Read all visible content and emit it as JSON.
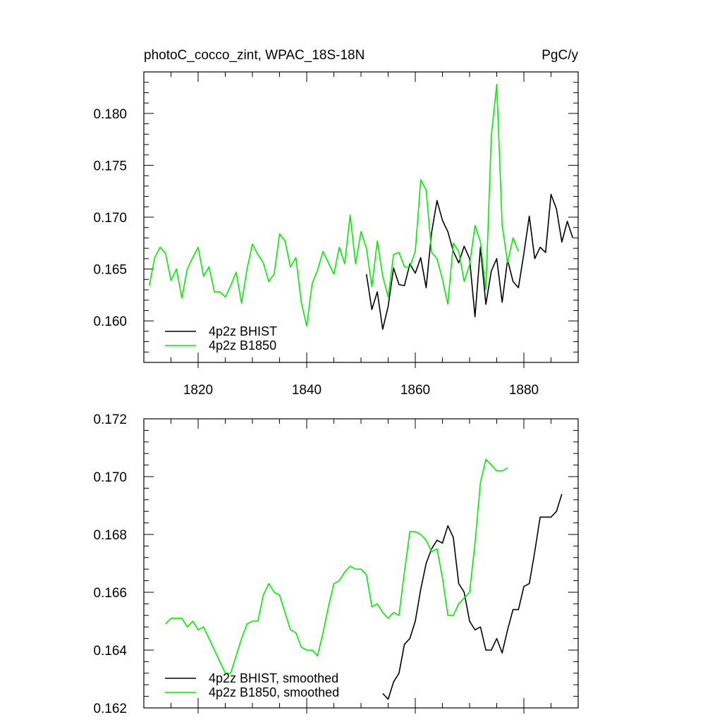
{
  "header": {
    "left_title": "photoC_cocco_zint, WPAC_18S-18N",
    "right_title": "PgC/y"
  },
  "colors": {
    "bhist": "#000000",
    "b1850": "#00ee00"
  },
  "chart_data": [
    {
      "type": "line",
      "title": "photoC_cocco_zint, WPAC_18S-18N",
      "units": "PgC/y",
      "xlim": [
        1810,
        1890
      ],
      "ylim": [
        0.156,
        0.184
      ],
      "xticks": [
        1820,
        1840,
        1860,
        1880
      ],
      "xtick_labels": [
        "1820",
        "1840",
        "1860",
        "1880"
      ],
      "yticks": [
        0.16,
        0.165,
        0.17,
        0.175,
        0.18
      ],
      "ytick_labels": [
        "0.160",
        "0.165",
        "0.170",
        "0.175",
        "0.180"
      ],
      "grid": false,
      "legend_position": "bottom-left",
      "series": [
        {
          "name": "4p2z BHIST",
          "color": "#000000",
          "x": [
            1851,
            1852,
            1853,
            1854,
            1855,
            1856,
            1857,
            1858,
            1859,
            1860,
            1861,
            1862,
            1863,
            1864,
            1865,
            1866,
            1867,
            1868,
            1869,
            1870,
            1871,
            1872,
            1873,
            1874,
            1875,
            1876,
            1877,
            1878,
            1879,
            1880,
            1881,
            1882,
            1883,
            1884,
            1885,
            1886,
            1887,
            1888,
            1889
          ],
          "y": [
            0.1645,
            0.1611,
            0.1628,
            0.1592,
            0.1614,
            0.1651,
            0.1635,
            0.1634,
            0.1655,
            0.1646,
            0.1661,
            0.1632,
            0.1685,
            0.1716,
            0.1697,
            0.1686,
            0.1667,
            0.1656,
            0.1672,
            0.166,
            0.1604,
            0.1671,
            0.1616,
            0.1648,
            0.166,
            0.1618,
            0.1659,
            0.1638,
            0.1632,
            0.1665,
            0.1701,
            0.166,
            0.1671,
            0.1666,
            0.1722,
            0.1708,
            0.1676,
            0.1696,
            0.168
          ]
        },
        {
          "name": "4p2z B1850",
          "color": "#00ee00",
          "x": [
            1811,
            1812,
            1813,
            1814,
            1815,
            1816,
            1817,
            1818,
            1819,
            1820,
            1821,
            1822,
            1823,
            1824,
            1825,
            1826,
            1827,
            1828,
            1829,
            1830,
            1831,
            1832,
            1833,
            1834,
            1835,
            1836,
            1837,
            1838,
            1839,
            1840,
            1841,
            1842,
            1843,
            1844,
            1845,
            1846,
            1847,
            1848,
            1849,
            1850,
            1851,
            1852,
            1853,
            1854,
            1855,
            1856,
            1857,
            1858,
            1859,
            1860,
            1861,
            1862,
            1863,
            1864,
            1865,
            1866,
            1867,
            1868,
            1869,
            1870,
            1871,
            1872,
            1873,
            1874,
            1875,
            1876,
            1877,
            1878,
            1879
          ],
          "y": [
            0.1634,
            0.1661,
            0.1671,
            0.1665,
            0.1639,
            0.165,
            0.1622,
            0.165,
            0.1661,
            0.1671,
            0.1643,
            0.1652,
            0.1628,
            0.1628,
            0.1623,
            0.1634,
            0.1647,
            0.1617,
            0.165,
            0.1674,
            0.1664,
            0.1656,
            0.1638,
            0.1645,
            0.1684,
            0.1677,
            0.1652,
            0.1661,
            0.1618,
            0.1595,
            0.1636,
            0.1649,
            0.1667,
            0.1656,
            0.1645,
            0.1671,
            0.1655,
            0.1702,
            0.1655,
            0.1686,
            0.167,
            0.1633,
            0.1677,
            0.1643,
            0.1623,
            0.1664,
            0.1666,
            0.1652,
            0.1652,
            0.1667,
            0.1736,
            0.1726,
            0.1666,
            0.166,
            0.164,
            0.1616,
            0.1675,
            0.1667,
            0.1638,
            0.1654,
            0.1692,
            0.1676,
            0.163,
            0.1778,
            0.1828,
            0.1692,
            0.1656,
            0.168,
            0.1667
          ]
        }
      ]
    },
    {
      "type": "line",
      "xlim": [
        1810,
        1890
      ],
      "ylim": [
        0.162,
        0.172
      ],
      "xticks": [
        1820,
        1840,
        1860,
        1880
      ],
      "xtick_labels": [],
      "yticks": [
        0.162,
        0.164,
        0.166,
        0.168,
        0.17,
        0.172
      ],
      "ytick_labels": [
        "0.162",
        "0.164",
        "0.166",
        "0.168",
        "0.170",
        "0.172"
      ],
      "grid": false,
      "legend_position": "bottom-left",
      "series": [
        {
          "name": "4p2z BHIST, smoothed",
          "color": "#000000",
          "x": [
            1854,
            1855,
            1856,
            1857,
            1858,
            1859,
            1860,
            1861,
            1862,
            1863,
            1864,
            1865,
            1866,
            1867,
            1868,
            1869,
            1870,
            1871,
            1872,
            1873,
            1874,
            1875,
            1876,
            1877,
            1878,
            1879,
            1880,
            1881,
            1882,
            1883,
            1884,
            1885,
            1886,
            1887
          ],
          "y": [
            0.1625,
            0.1623,
            0.1629,
            0.1632,
            0.1642,
            0.1644,
            0.165,
            0.1661,
            0.167,
            0.1675,
            0.1678,
            0.1677,
            0.1683,
            0.1679,
            0.1663,
            0.166,
            0.165,
            0.1647,
            0.1648,
            0.164,
            0.164,
            0.1644,
            0.1639,
            0.1647,
            0.1654,
            0.1654,
            0.1662,
            0.1663,
            0.1674,
            0.1686,
            0.1686,
            0.1686,
            0.1688,
            0.1694
          ]
        },
        {
          "name": "4p2z B1850, smoothed",
          "color": "#00ee00",
          "x": [
            1814,
            1815,
            1816,
            1817,
            1818,
            1819,
            1820,
            1821,
            1822,
            1823,
            1824,
            1825,
            1826,
            1827,
            1828,
            1829,
            1830,
            1831,
            1832,
            1833,
            1834,
            1835,
            1836,
            1837,
            1838,
            1839,
            1840,
            1841,
            1842,
            1843,
            1844,
            1845,
            1846,
            1847,
            1848,
            1849,
            1850,
            1851,
            1852,
            1853,
            1854,
            1855,
            1856,
            1857,
            1858,
            1859,
            1860,
            1861,
            1862,
            1863,
            1864,
            1865,
            1866,
            1867,
            1868,
            1869,
            1870,
            1871,
            1872,
            1873,
            1874,
            1875,
            1876,
            1877
          ],
          "y": [
            0.1649,
            0.1651,
            0.1651,
            0.1651,
            0.1648,
            0.165,
            0.1647,
            0.1648,
            0.1644,
            0.164,
            0.1636,
            0.1632,
            0.1632,
            0.1638,
            0.1644,
            0.1649,
            0.165,
            0.165,
            0.1659,
            0.1663,
            0.166,
            0.1659,
            0.1653,
            0.1647,
            0.1646,
            0.1641,
            0.164,
            0.164,
            0.1638,
            0.1646,
            0.1655,
            0.1663,
            0.1664,
            0.1667,
            0.1669,
            0.1668,
            0.1668,
            0.1666,
            0.1655,
            0.1656,
            0.1653,
            0.1651,
            0.1653,
            0.1652,
            0.1667,
            0.1681,
            0.1681,
            0.168,
            0.1678,
            0.1674,
            0.1675,
            0.1665,
            0.1652,
            0.1652,
            0.1656,
            0.1658,
            0.166,
            0.1677,
            0.1698,
            0.1706,
            0.1704,
            0.1702,
            0.1702,
            0.1703
          ]
        }
      ]
    }
  ]
}
